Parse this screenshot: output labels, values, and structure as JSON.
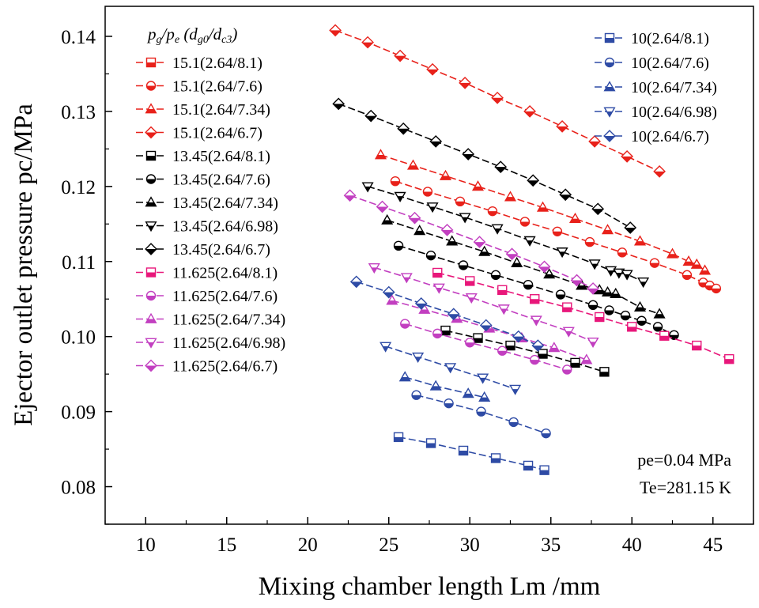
{
  "chart_data": {
    "type": "line",
    "xlabel": "Mixing chamber length Lm /mm",
    "ylabel": "Ejector outlet pressure pc/MPa",
    "xlim": [
      7.5,
      47.5
    ],
    "ylim": [
      0.075,
      0.144
    ],
    "x_ticks": [
      "10",
      "15",
      "20",
      "25",
      "30",
      "35",
      "40",
      "45"
    ],
    "y_ticks": [
      "0.08",
      "0.09",
      "0.10",
      "0.11",
      "0.12",
      "0.13",
      "0.14"
    ],
    "x_tick_values": [
      10,
      15,
      20,
      25,
      30,
      35,
      40,
      45
    ],
    "y_tick_values": [
      0.08,
      0.09,
      0.1,
      0.11,
      0.12,
      0.13,
      0.14
    ],
    "legend_title": "pg/pe (dg0/dc3)",
    "conditions": [
      "pe=0.04 MPa",
      "Te=281.15 K"
    ],
    "colors": {
      "red": "#e8211a",
      "black": "#000000",
      "magenta": "#e8177a",
      "violet": "#c23fc0",
      "blue": "#2e4ba5"
    },
    "series": [
      {
        "name": "15.1(2.64/8.1)",
        "color": "#e8211a",
        "marker": "square",
        "x": [],
        "y": []
      },
      {
        "name": "15.1(2.64/7.6)",
        "color": "#e8211a",
        "marker": "circle",
        "x": [
          25.4,
          27.4,
          29.4,
          31.4,
          33.4,
          35.4,
          37.4,
          39.4,
          41.4,
          43.4,
          44.4,
          44.8,
          45.2
        ],
        "y": [
          0.1207,
          0.1193,
          0.118,
          0.1167,
          0.1153,
          0.114,
          0.1126,
          0.1112,
          0.1098,
          0.1082,
          0.1072,
          0.1068,
          0.1064
        ]
      },
      {
        "name": "15.1(2.64/7.34)",
        "color": "#e8211a",
        "marker": "triangle-up",
        "x": [
          24.5,
          26.5,
          28.5,
          30.5,
          32.5,
          34.5,
          36.5,
          38.5,
          40.5,
          42.5,
          43.5,
          44.0,
          44.5
        ],
        "y": [
          0.1242,
          0.1228,
          0.1214,
          0.12,
          0.1186,
          0.1172,
          0.1157,
          0.1142,
          0.1127,
          0.111,
          0.11,
          0.1096,
          0.1088
        ]
      },
      {
        "name": "15.1(2.64/6.7)",
        "color": "#e8211a",
        "marker": "diamond",
        "x": [
          21.7,
          23.7,
          25.7,
          27.7,
          29.7,
          31.7,
          33.7,
          35.7,
          37.7,
          39.7,
          41.7
        ],
        "y": [
          0.1408,
          0.1392,
          0.1374,
          0.1356,
          0.1338,
          0.1318,
          0.13,
          0.128,
          0.126,
          0.124,
          0.122
        ]
      },
      {
        "name": "13.45(2.64/8.1)",
        "color": "#000000",
        "marker": "square",
        "x": [
          28.5,
          30.5,
          32.5,
          34.5,
          36.5,
          38.3
        ],
        "y": [
          0.1008,
          0.0998,
          0.0988,
          0.0977,
          0.0965,
          0.0953
        ]
      },
      {
        "name": "13.45(2.64/7.6)",
        "color": "#000000",
        "marker": "circle",
        "x": [
          25.6,
          27.6,
          29.6,
          31.6,
          33.6,
          35.6,
          37.6,
          38.6,
          39.6,
          40.6,
          41.6,
          42.6
        ],
        "y": [
          0.1121,
          0.1108,
          0.1095,
          0.1082,
          0.1069,
          0.1056,
          0.1042,
          0.1035,
          0.1028,
          0.1021,
          0.1013,
          0.1002
        ]
      },
      {
        "name": "13.45(2.64/7.34)",
        "color": "#000000",
        "marker": "triangle-up",
        "x": [
          24.9,
          26.9,
          28.9,
          30.9,
          32.9,
          34.9,
          36.9,
          38.0,
          38.5,
          39.0,
          40.5,
          41.7
        ],
        "y": [
          0.1155,
          0.1141,
          0.1127,
          0.1113,
          0.1098,
          0.1083,
          0.1068,
          0.1062,
          0.1059,
          0.1057,
          0.1039,
          0.103
        ]
      },
      {
        "name": "13.45(2.64/6.98)",
        "color": "#000000",
        "marker": "triangle-down",
        "x": [
          23.7,
          25.7,
          27.7,
          29.7,
          31.7,
          33.7,
          35.7,
          37.7,
          38.7,
          39.2,
          39.7,
          40.7
        ],
        "y": [
          0.12,
          0.1187,
          0.1173,
          0.1159,
          0.1144,
          0.1128,
          0.1113,
          0.1097,
          0.1088,
          0.1085,
          0.1083,
          0.1073
        ]
      },
      {
        "name": "13.45(2.64/6.7)",
        "color": "#000000",
        "marker": "diamond",
        "x": [
          21.9,
          23.9,
          25.9,
          27.9,
          29.9,
          31.9,
          33.9,
          35.9,
          37.9,
          39.9
        ],
        "y": [
          0.131,
          0.1294,
          0.1277,
          0.126,
          0.1243,
          0.1226,
          0.1208,
          0.1189,
          0.117,
          0.1145
        ]
      },
      {
        "name": "11.625(2.64/8.1)",
        "color": "#e8177a",
        "marker": "square",
        "x": [
          28.0,
          30.0,
          32.0,
          34.0,
          36.0,
          38.0,
          40.0,
          42.0,
          44.0,
          46.0
        ],
        "y": [
          0.1085,
          0.1074,
          0.1062,
          0.105,
          0.1039,
          0.1026,
          0.1013,
          0.1001,
          0.0988,
          0.097
        ]
      },
      {
        "name": "11.625(2.64/7.6)",
        "color": "#c23fc0",
        "marker": "circle",
        "x": [
          26.0,
          28.0,
          30.0,
          32.0,
          34.0,
          36.0
        ],
        "y": [
          0.1017,
          0.1004,
          0.0992,
          0.0981,
          0.0969,
          0.0956
        ]
      },
      {
        "name": "11.625(2.64/7.34)",
        "color": "#c23fc0",
        "marker": "triangle-up",
        "x": [
          25.2,
          27.2,
          29.2,
          31.2,
          33.2,
          35.2,
          37.2
        ],
        "y": [
          0.1048,
          0.1036,
          0.1024,
          0.1011,
          0.0998,
          0.0985,
          0.0969
        ]
      },
      {
        "name": "11.625(2.64/6.98)",
        "color": "#c23fc0",
        "marker": "triangle-down",
        "x": [
          24.1,
          26.1,
          28.1,
          30.1,
          32.1,
          34.1,
          36.1,
          37.6
        ],
        "y": [
          0.1092,
          0.1079,
          0.1065,
          0.1052,
          0.1037,
          0.1022,
          0.1007,
          0.0993
        ]
      },
      {
        "name": "11.625(2.64/6.7)",
        "color": "#c23fc0",
        "marker": "diamond",
        "x": [
          22.6,
          24.6,
          26.6,
          28.6,
          30.6,
          32.6,
          34.6,
          36.6,
          37.6
        ],
        "y": [
          0.1188,
          0.1173,
          0.1158,
          0.1142,
          0.1126,
          0.111,
          0.1093,
          0.1075,
          0.1064
        ]
      },
      {
        "name": "10(2.64/8.1)",
        "color": "#2e4ba5",
        "marker": "square",
        "x": [
          25.6,
          27.6,
          29.6,
          31.6,
          33.6,
          34.6
        ],
        "y": [
          0.0866,
          0.0858,
          0.0848,
          0.0838,
          0.0828,
          0.0822
        ]
      },
      {
        "name": "10(2.64/7.6)",
        "color": "#2e4ba5",
        "marker": "circle",
        "x": [
          26.7,
          28.7,
          30.7,
          32.7,
          34.7
        ],
        "y": [
          0.0922,
          0.0911,
          0.09,
          0.0886,
          0.0871
        ]
      },
      {
        "name": "10(2.64/7.34)",
        "color": "#2e4ba5",
        "marker": "triangle-up",
        "x": [
          26.0,
          27.9,
          29.9,
          30.9
        ],
        "y": [
          0.0946,
          0.0934,
          0.0924,
          0.0919
        ]
      },
      {
        "name": "10(2.64/6.98)",
        "color": "#2e4ba5",
        "marker": "triangle-down",
        "x": [
          24.8,
          26.8,
          28.8,
          30.8,
          32.8
        ],
        "y": [
          0.0987,
          0.0973,
          0.0959,
          0.0945,
          0.093
        ]
      },
      {
        "name": "10(2.64/6.7)",
        "color": "#2e4ba5",
        "marker": "diamond",
        "x": [
          23.0,
          25.0,
          27.0,
          29.0,
          31.0,
          33.0,
          34.2
        ],
        "y": [
          0.1073,
          0.1059,
          0.1044,
          0.103,
          0.1015,
          0.1,
          0.0988
        ]
      }
    ]
  }
}
